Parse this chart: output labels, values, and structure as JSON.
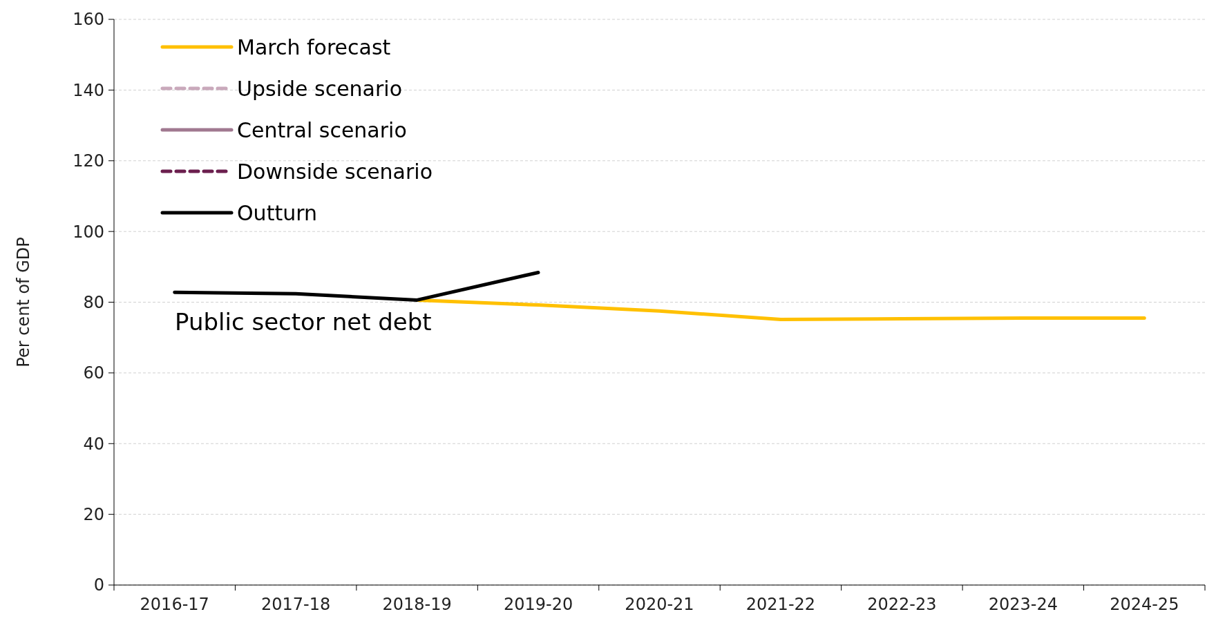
{
  "chart_data": {
    "type": "line",
    "ylabel": "Per cent of GDP",
    "categories": [
      "2016-17",
      "2017-18",
      "2018-19",
      "2019-20",
      "2020-21",
      "2021-22",
      "2022-23",
      "2023-24",
      "2024-25"
    ],
    "ylim": [
      0,
      160
    ],
    "yticks": [
      0,
      20,
      40,
      60,
      80,
      100,
      120,
      140,
      160
    ],
    "grid": "y",
    "legend": "top left",
    "marker": "none",
    "series": [
      {
        "name": "March forecast",
        "color": "#ffc000",
        "line_style": "solid",
        "values": [
          null,
          null,
          80.6,
          79.2,
          77.5,
          75.1,
          75.3,
          75.5,
          75.5
        ]
      },
      {
        "name": "Upside scenario",
        "color": "#c9a9bb",
        "line_style": "dashed",
        "values": [
          null,
          null,
          null,
          null,
          null,
          null,
          null,
          null,
          null
        ]
      },
      {
        "name": "Central scenario",
        "color": "#a07890",
        "line_style": "solid",
        "values": [
          null,
          null,
          null,
          null,
          null,
          null,
          null,
          null,
          null
        ]
      },
      {
        "name": "Downside scenario",
        "color": "#6b1f4e",
        "line_style": "dashed",
        "values": [
          null,
          null,
          null,
          null,
          null,
          null,
          null,
          null,
          null
        ]
      },
      {
        "name": "Outturn",
        "color": "#000000",
        "line_style": "solid",
        "values": [
          82.8,
          82.4,
          80.6,
          88.4,
          null,
          null,
          null,
          null,
          null
        ]
      }
    ],
    "annotations": [
      "Public sector net debt"
    ]
  }
}
